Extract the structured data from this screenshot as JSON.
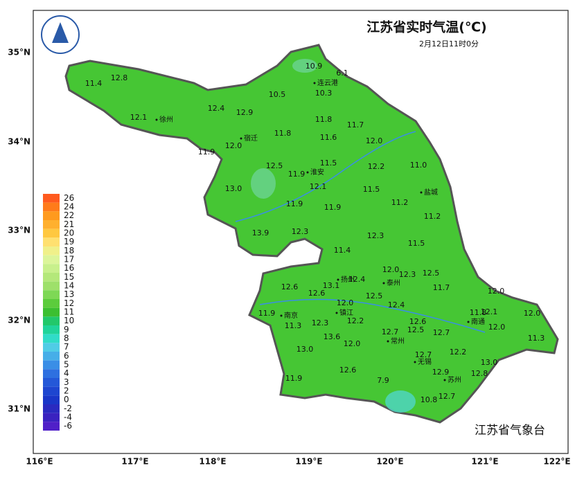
{
  "header": {
    "title": "江苏省实时气温(℃)",
    "subtitle": "2月12日11时0分"
  },
  "credit": "江苏省气象台",
  "lat_labels": [
    "35°N",
    "34°N",
    "33°N",
    "32°N",
    "31°N"
  ],
  "lon_labels": [
    "116°E",
    "117°E",
    "118°E",
    "119°E",
    "120°E",
    "121°E",
    "122°E"
  ],
  "legend": {
    "labels": [
      26,
      24,
      22,
      21,
      20,
      19,
      18,
      17,
      16,
      15,
      14,
      13,
      12,
      11,
      10,
      9,
      8,
      7,
      6,
      5,
      4,
      3,
      2,
      0,
      -2,
      -4,
      -6
    ],
    "colors": [
      "#ff5a1e",
      "#ff7b1a",
      "#ff9a1e",
      "#ffb02e",
      "#ffc840",
      "#ffe070",
      "#f0f08a",
      "#dcf59a",
      "#c8f08c",
      "#b4e87a",
      "#9ee06a",
      "#7ed855",
      "#5ccc3c",
      "#3cbf30",
      "#22c86a",
      "#20d49a",
      "#30dcc8",
      "#50cce6",
      "#46aee8",
      "#3a8ee6",
      "#2e70e0",
      "#2458d8",
      "#1e46d0",
      "#1a36c8",
      "#2a2ac0",
      "#3a22c0",
      "#5020c8"
    ]
  },
  "cities": [
    "徐州",
    "宿迁",
    "连云港",
    "淮安",
    "盐城",
    "扬州",
    "泰州",
    "南京",
    "镇江",
    "南通",
    "常州",
    "无锡",
    "苏州"
  ],
  "stations": [
    "11.4",
    "12.8",
    "12.1",
    "12.4",
    "12.9",
    "10.9",
    "6.1",
    "10.5",
    "10.3",
    "11.8",
    "11.7",
    "11.8",
    "11.6",
    "12.0",
    "11.9",
    "12.0",
    "12.5",
    "11.9",
    "11.5",
    "12.2",
    "11.0",
    "13.0",
    "12.1",
    "11.5",
    "11.9",
    "11.9",
    "11.2",
    "11.2",
    "13.9",
    "12.3",
    "12.3",
    "11.5",
    "11.4",
    "12.0",
    "12.3",
    "12.5",
    "12.4",
    "13.1",
    "12.6",
    "11.7",
    "12.0",
    "12.6",
    "12.5",
    "12.0",
    "12.4",
    "11.9",
    "11.8",
    "12.1",
    "12.0",
    "11.3",
    "12.3",
    "12.2",
    "12.7",
    "12.6",
    "12.5",
    "12.7",
    "12.0",
    "13.6",
    "12.0",
    "11.3",
    "13.0",
    "12.2",
    "12.7",
    "13.0",
    "12.6",
    "12.9",
    "12.8",
    "11.9",
    "7.9",
    "12.7",
    "10.8"
  ]
}
